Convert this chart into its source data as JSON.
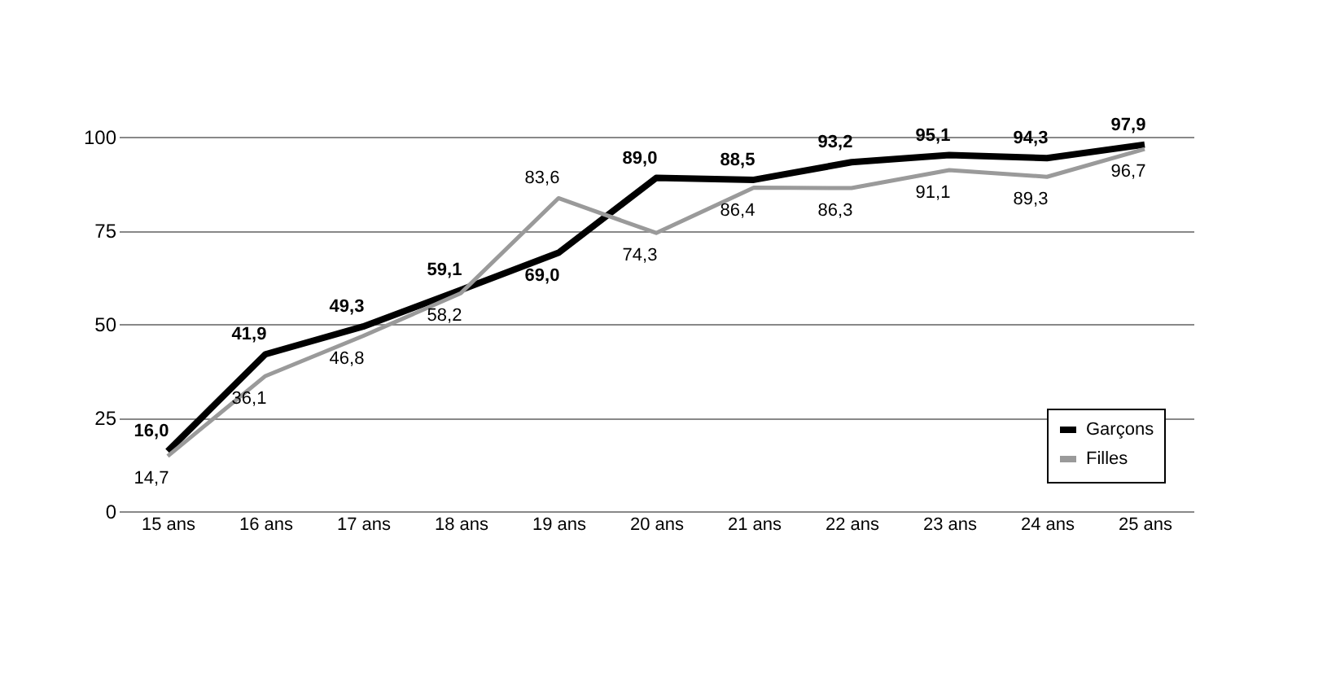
{
  "chart_data": {
    "type": "line",
    "categories": [
      "15 ans",
      "16 ans",
      "17 ans",
      "18 ans",
      "19 ans",
      "20 ans",
      "21 ans",
      "22 ans",
      "23 ans",
      "24 ans",
      "25 ans"
    ],
    "series": [
      {
        "name": "Garçons",
        "color": "#000000",
        "values": [
          16.0,
          41.9,
          49.3,
          59.1,
          69.0,
          89.0,
          88.5,
          93.2,
          95.1,
          94.3,
          97.9
        ],
        "value_labels": [
          "16,0",
          "41,9",
          "49,3",
          "59,1",
          "69,0",
          "89,0",
          "88,5",
          "93,2",
          "95,1",
          "94,3",
          "97,9"
        ]
      },
      {
        "name": "Filles",
        "color": "#9a9a9a",
        "values": [
          14.7,
          36.1,
          46.8,
          58.2,
          83.6,
          74.3,
          86.4,
          86.3,
          91.1,
          89.3,
          96.7
        ],
        "value_labels": [
          "14,7",
          "36,1",
          "46,8",
          "58,2",
          "83,6",
          "74,3",
          "86,4",
          "86,3",
          "91,1",
          "89,3",
          "96,7"
        ]
      }
    ],
    "ylim": [
      0,
      100
    ],
    "yticks": [
      0,
      25,
      50,
      75,
      100
    ],
    "grid": "y",
    "legend": "bottom right",
    "marker": "none",
    "line_style": "solid"
  }
}
